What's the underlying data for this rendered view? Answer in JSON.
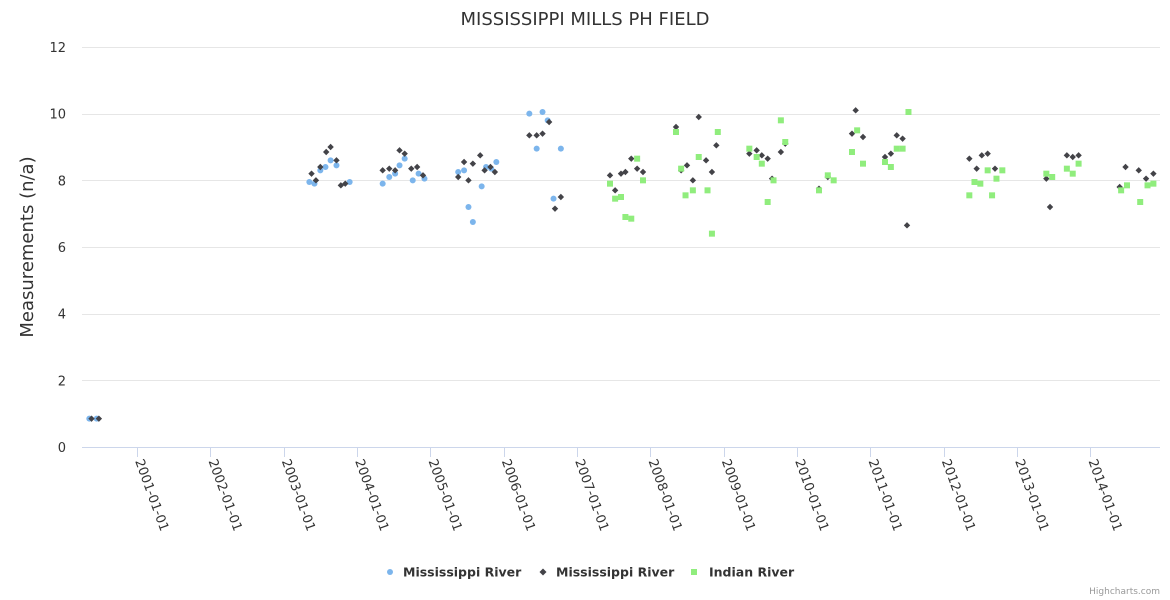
{
  "credits": "Highcharts.com",
  "chart_data": {
    "type": "scatter",
    "title": "MISSISSIPPI MILLS PH FIELD",
    "xlabel": "",
    "ylabel": "Measurements (n/a)",
    "ylim": [
      0,
      12
    ],
    "xlim": [
      2000.25,
      2014.95
    ],
    "yticks": [
      0,
      2,
      4,
      6,
      8,
      10,
      12
    ],
    "xticks": [
      {
        "label": "2001-01-01",
        "value": 2001.0
      },
      {
        "label": "2002-01-01",
        "value": 2002.0
      },
      {
        "label": "2003-01-01",
        "value": 2003.0
      },
      {
        "label": "2004-01-01",
        "value": 2004.0
      },
      {
        "label": "2005-01-01",
        "value": 2005.0
      },
      {
        "label": "2006-01-01",
        "value": 2006.0
      },
      {
        "label": "2007-01-01",
        "value": 2007.0
      },
      {
        "label": "2008-01-01",
        "value": 2008.0
      },
      {
        "label": "2009-01-01",
        "value": 2009.0
      },
      {
        "label": "2010-01-01",
        "value": 2010.0
      },
      {
        "label": "2011-01-01",
        "value": 2011.0
      },
      {
        "label": "2012-01-01",
        "value": 2012.0
      },
      {
        "label": "2013-01-01",
        "value": 2013.0
      },
      {
        "label": "2014-01-01",
        "value": 2014.0
      }
    ],
    "grid": true,
    "legend_position": "bottom-center",
    "series": [
      {
        "name": "Mississippi River",
        "marker": "circle",
        "color": "#7cb5ec",
        "points": [
          [
            2000.35,
            0.85
          ],
          [
            2000.45,
            0.85
          ],
          [
            2003.35,
            7.95
          ],
          [
            2003.42,
            7.9
          ],
          [
            2003.5,
            8.3
          ],
          [
            2003.57,
            8.4
          ],
          [
            2003.64,
            8.6
          ],
          [
            2003.72,
            8.45
          ],
          [
            2003.9,
            7.95
          ],
          [
            2004.35,
            7.9
          ],
          [
            2004.44,
            8.1
          ],
          [
            2004.52,
            8.2
          ],
          [
            2004.58,
            8.45
          ],
          [
            2004.65,
            8.65
          ],
          [
            2004.76,
            8.0
          ],
          [
            2004.84,
            8.2
          ],
          [
            2004.92,
            8.05
          ],
          [
            2005.38,
            8.25
          ],
          [
            2005.46,
            8.3
          ],
          [
            2005.52,
            7.2
          ],
          [
            2005.58,
            6.75
          ],
          [
            2005.7,
            7.82
          ],
          [
            2005.76,
            8.4
          ],
          [
            2005.83,
            8.35
          ],
          [
            2005.9,
            8.55
          ],
          [
            2006.35,
            10.0
          ],
          [
            2006.45,
            8.95
          ],
          [
            2006.53,
            10.05
          ],
          [
            2006.6,
            9.8
          ],
          [
            2006.68,
            7.45
          ],
          [
            2006.78,
            8.95
          ]
        ]
      },
      {
        "name": "Mississippi River",
        "marker": "diamond",
        "color": "#434348",
        "points": [
          [
            2000.38,
            0.85
          ],
          [
            2000.48,
            0.85
          ],
          [
            2003.38,
            8.2
          ],
          [
            2003.44,
            8.0
          ],
          [
            2003.5,
            8.4
          ],
          [
            2003.58,
            8.85
          ],
          [
            2003.64,
            9.0
          ],
          [
            2003.72,
            8.6
          ],
          [
            2003.78,
            7.85
          ],
          [
            2003.84,
            7.9
          ],
          [
            2004.35,
            8.3
          ],
          [
            2004.44,
            8.35
          ],
          [
            2004.52,
            8.3
          ],
          [
            2004.58,
            8.9
          ],
          [
            2004.65,
            8.8
          ],
          [
            2004.74,
            8.35
          ],
          [
            2004.82,
            8.4
          ],
          [
            2004.9,
            8.15
          ],
          [
            2005.38,
            8.1
          ],
          [
            2005.46,
            8.55
          ],
          [
            2005.52,
            8.0
          ],
          [
            2005.58,
            8.5
          ],
          [
            2005.68,
            8.75
          ],
          [
            2005.74,
            8.3
          ],
          [
            2005.82,
            8.4
          ],
          [
            2005.88,
            8.25
          ],
          [
            2006.35,
            9.35
          ],
          [
            2006.45,
            9.35
          ],
          [
            2006.53,
            9.4
          ],
          [
            2006.62,
            9.75
          ],
          [
            2006.7,
            7.15
          ],
          [
            2006.78,
            7.5
          ],
          [
            2007.45,
            8.15
          ],
          [
            2007.52,
            7.7
          ],
          [
            2007.6,
            8.2
          ],
          [
            2007.66,
            8.25
          ],
          [
            2007.74,
            8.65
          ],
          [
            2007.82,
            8.35
          ],
          [
            2007.9,
            8.25
          ],
          [
            2008.35,
            9.6
          ],
          [
            2008.42,
            8.3
          ],
          [
            2008.5,
            8.45
          ],
          [
            2008.58,
            8.0
          ],
          [
            2008.66,
            9.9
          ],
          [
            2008.76,
            8.6
          ],
          [
            2008.84,
            8.25
          ],
          [
            2008.9,
            9.05
          ],
          [
            2009.35,
            8.8
          ],
          [
            2009.45,
            8.9
          ],
          [
            2009.52,
            8.75
          ],
          [
            2009.6,
            8.65
          ],
          [
            2009.66,
            8.05
          ],
          [
            2009.78,
            8.85
          ],
          [
            2009.84,
            9.1
          ],
          [
            2010.3,
            7.75
          ],
          [
            2010.42,
            8.1
          ],
          [
            2010.75,
            9.4
          ],
          [
            2010.8,
            10.1
          ],
          [
            2010.9,
            9.3
          ],
          [
            2011.2,
            8.7
          ],
          [
            2011.28,
            8.8
          ],
          [
            2011.36,
            9.35
          ],
          [
            2011.44,
            9.25
          ],
          [
            2011.5,
            6.65
          ],
          [
            2012.35,
            8.65
          ],
          [
            2012.45,
            8.35
          ],
          [
            2012.52,
            8.75
          ],
          [
            2012.6,
            8.8
          ],
          [
            2012.7,
            8.35
          ],
          [
            2013.4,
            8.05
          ],
          [
            2013.45,
            7.2
          ],
          [
            2013.68,
            8.75
          ],
          [
            2013.76,
            8.7
          ],
          [
            2013.84,
            8.75
          ],
          [
            2014.4,
            7.8
          ],
          [
            2014.48,
            8.4
          ],
          [
            2014.66,
            8.3
          ],
          [
            2014.76,
            8.05
          ],
          [
            2014.86,
            8.2
          ]
        ]
      },
      {
        "name": "Indian River",
        "marker": "square",
        "color": "#90ed7d",
        "points": [
          [
            2007.45,
            7.9
          ],
          [
            2007.52,
            7.45
          ],
          [
            2007.6,
            7.5
          ],
          [
            2007.66,
            6.9
          ],
          [
            2007.74,
            6.85
          ],
          [
            2007.82,
            8.65
          ],
          [
            2007.9,
            8.0
          ],
          [
            2008.35,
            9.45
          ],
          [
            2008.42,
            8.35
          ],
          [
            2008.48,
            7.55
          ],
          [
            2008.58,
            7.7
          ],
          [
            2008.66,
            8.7
          ],
          [
            2008.78,
            7.7
          ],
          [
            2008.84,
            6.4
          ],
          [
            2008.92,
            9.45
          ],
          [
            2009.35,
            8.95
          ],
          [
            2009.45,
            8.7
          ],
          [
            2009.52,
            8.5
          ],
          [
            2009.6,
            7.35
          ],
          [
            2009.68,
            8.0
          ],
          [
            2009.78,
            9.8
          ],
          [
            2009.84,
            9.15
          ],
          [
            2010.3,
            7.7
          ],
          [
            2010.42,
            8.15
          ],
          [
            2010.5,
            8.0
          ],
          [
            2010.75,
            8.85
          ],
          [
            2010.82,
            9.5
          ],
          [
            2010.9,
            8.5
          ],
          [
            2011.2,
            8.55
          ],
          [
            2011.28,
            8.4
          ],
          [
            2011.36,
            8.95
          ],
          [
            2011.44,
            8.95
          ],
          [
            2011.52,
            10.05
          ],
          [
            2012.35,
            7.55
          ],
          [
            2012.42,
            7.95
          ],
          [
            2012.5,
            7.9
          ],
          [
            2012.6,
            8.3
          ],
          [
            2012.66,
            7.55
          ],
          [
            2012.72,
            8.05
          ],
          [
            2012.8,
            8.3
          ],
          [
            2013.4,
            8.2
          ],
          [
            2013.48,
            8.1
          ],
          [
            2013.68,
            8.35
          ],
          [
            2013.76,
            8.2
          ],
          [
            2013.84,
            8.5
          ],
          [
            2014.42,
            7.7
          ],
          [
            2014.5,
            7.85
          ],
          [
            2014.68,
            7.35
          ],
          [
            2014.78,
            7.85
          ],
          [
            2014.86,
            7.9
          ]
        ]
      }
    ]
  }
}
